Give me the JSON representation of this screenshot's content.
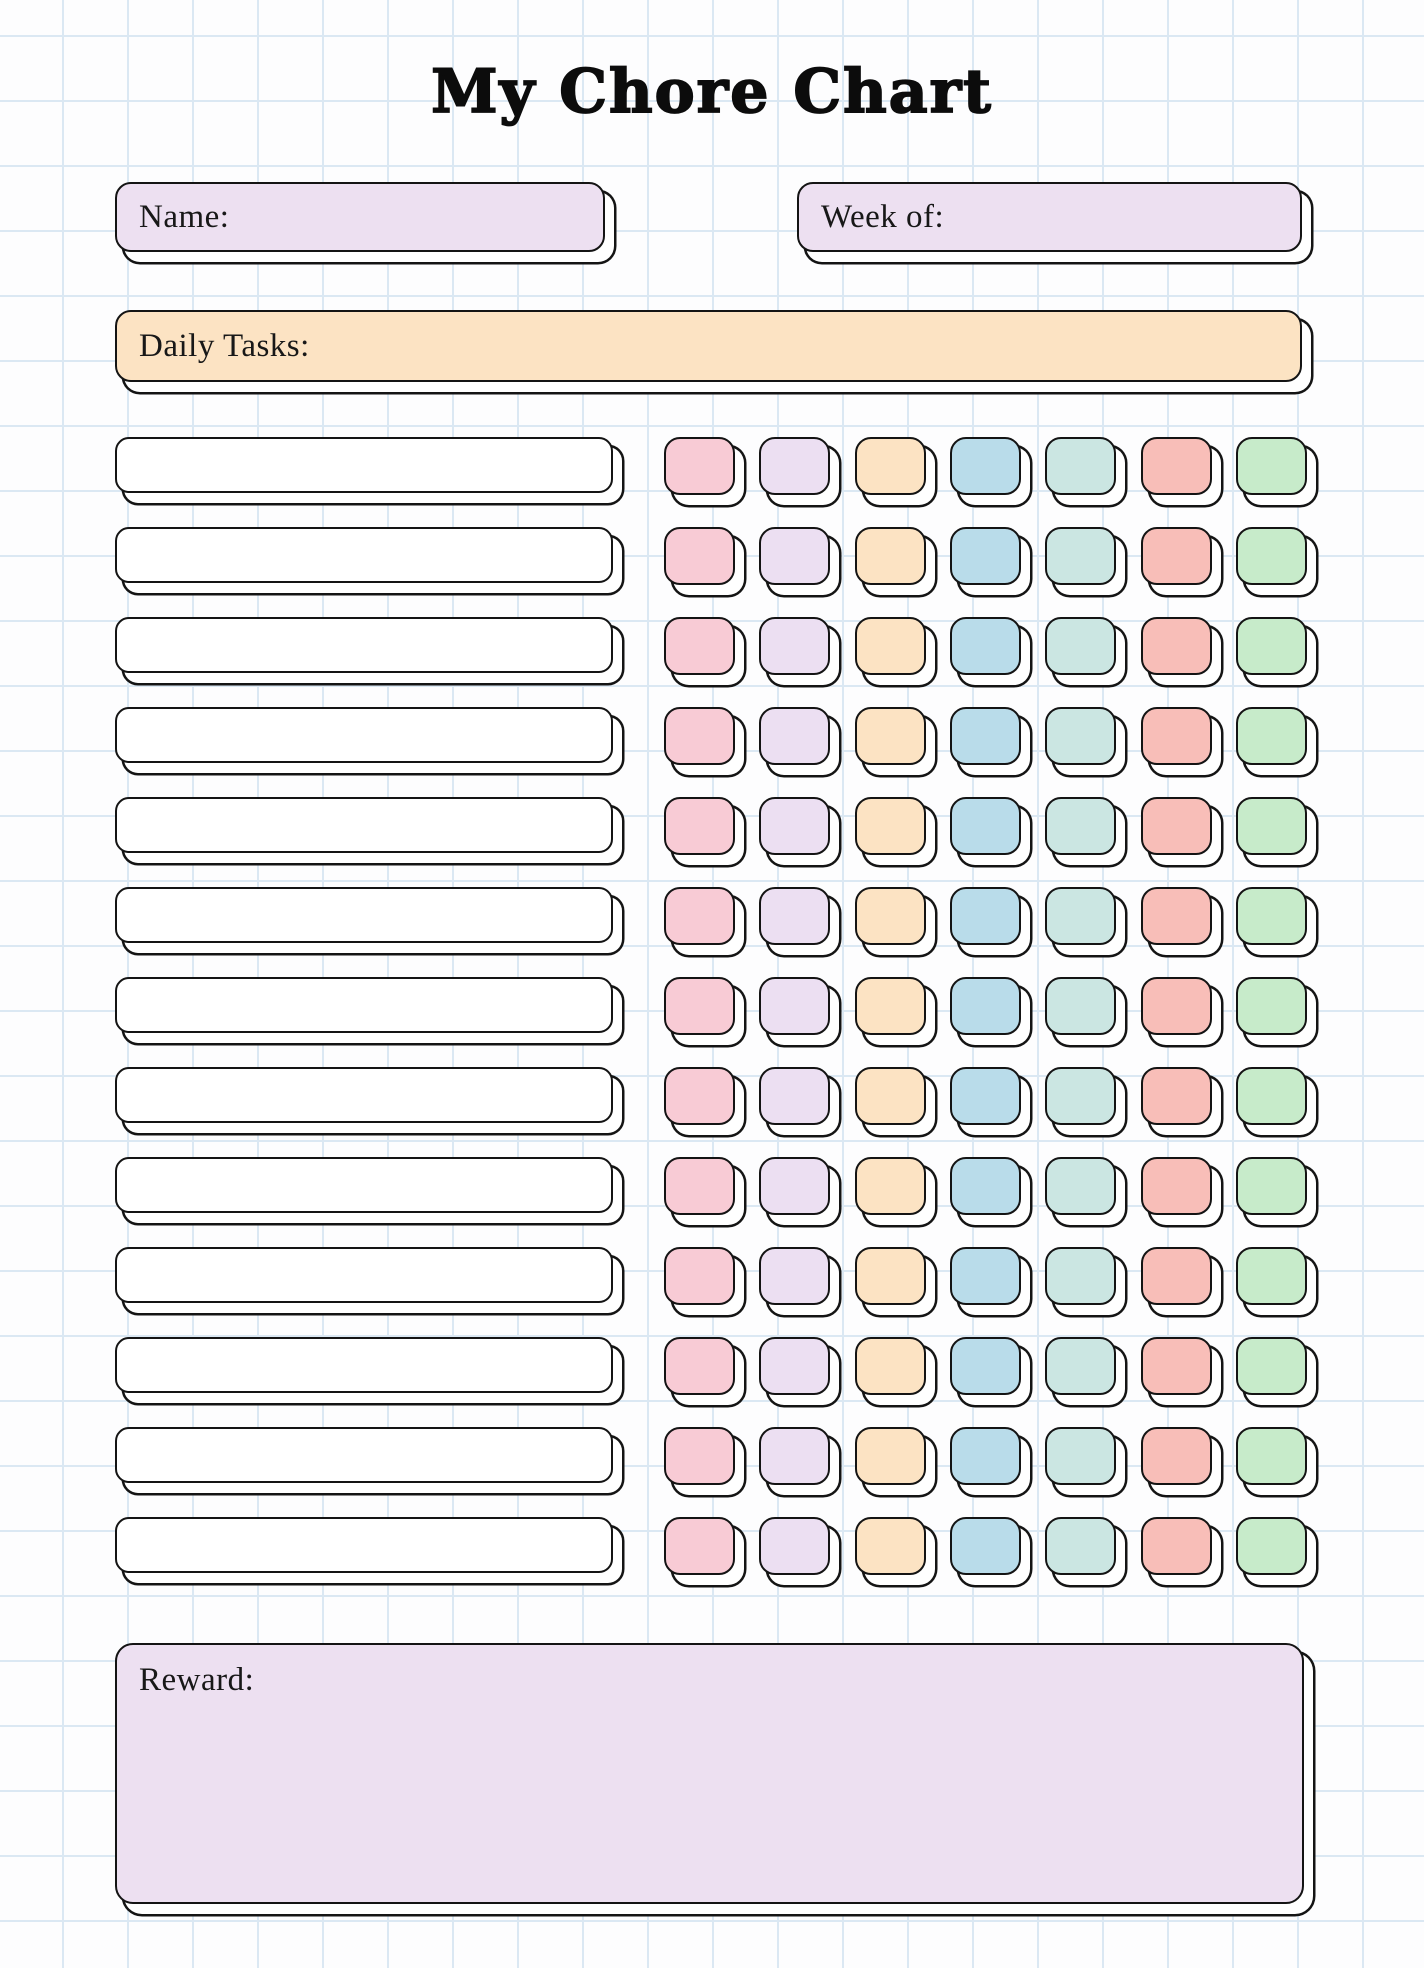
{
  "page": {
    "title": "My Chore Chart"
  },
  "fields": {
    "name_label": "Name:",
    "name_value": "",
    "week_label": "Week of:",
    "week_value": ""
  },
  "tasks": {
    "header_label": "Daily Tasks:",
    "rows": [
      "",
      "",
      "",
      "",
      "",
      "",
      "",
      "",
      "",
      "",
      "",
      "",
      ""
    ]
  },
  "checkbox_days": [
    {
      "name": "day-1",
      "color": "#f8cbd5"
    },
    {
      "name": "day-2",
      "color": "#ecdff2"
    },
    {
      "name": "day-3",
      "color": "#fce3c3"
    },
    {
      "name": "day-4",
      "color": "#b9dcea"
    },
    {
      "name": "day-5",
      "color": "#cbe6e2"
    },
    {
      "name": "day-6",
      "color": "#f8beb8"
    },
    {
      "name": "day-7",
      "color": "#c7ebca"
    }
  ],
  "reward": {
    "label": "Reward:",
    "value": ""
  },
  "colors": {
    "field_lavender": "#ede0f1",
    "header_peach": "#fce3c3",
    "task_white": "#ffffff",
    "border_black": "#141414",
    "grid_blue": "#dbe8f3",
    "background": "#fdfdfe"
  }
}
